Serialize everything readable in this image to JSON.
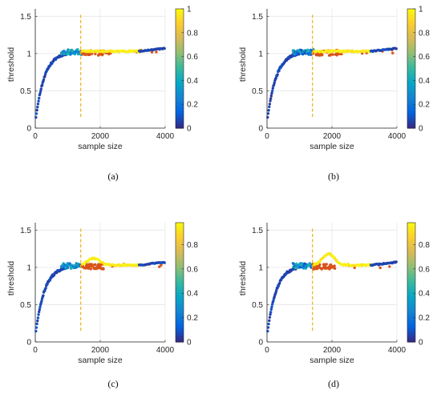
{
  "chart_data": [
    {
      "type": "scatter",
      "caption": "(a)",
      "xlabel": "sample size",
      "ylabel": "threshold",
      "xlim": [
        0,
        4000
      ],
      "ylim": [
        0,
        1.6
      ],
      "xticks": [
        "0",
        "2000",
        "4000"
      ],
      "yticks": [
        "0",
        "0.5",
        "1",
        "1.5"
      ],
      "colorbar": {
        "range": [
          0,
          1
        ],
        "ticks": [
          "0",
          "0.2",
          "0.4",
          "0.6",
          "0.8",
          "1"
        ],
        "colormap": "parula"
      },
      "grid": true,
      "vline": {
        "x": 1400,
        "y_range": [
          0.15,
          1.52
        ],
        "color": "#EDB120"
      },
      "hump": {
        "peak_x": 0,
        "height": 0
      }
    },
    {
      "type": "scatter",
      "caption": "(b)",
      "xlabel": "sample size",
      "ylabel": "threshold",
      "xlim": [
        0,
        4000
      ],
      "ylim": [
        0,
        1.6
      ],
      "xticks": [
        "0",
        "2000",
        "4000"
      ],
      "yticks": [
        "0",
        "0.5",
        "1",
        "1.5"
      ],
      "colorbar": {
        "range": [
          0,
          1
        ],
        "ticks": [
          "0",
          "0.2",
          "0.4",
          "0.6",
          "0.8",
          "1"
        ],
        "colormap": "parula"
      },
      "grid": true,
      "vline": {
        "x": 1400,
        "y_range": [
          0.15,
          1.52
        ],
        "color": "#EDB120"
      },
      "hump": {
        "peak_x": 0,
        "height": 0
      }
    },
    {
      "type": "scatter",
      "caption": "(c)",
      "xlabel": "sample size",
      "ylabel": "threshold",
      "xlim": [
        0,
        4000
      ],
      "ylim": [
        0,
        1.6
      ],
      "xticks": [
        "0",
        "2000",
        "4000"
      ],
      "yticks": [
        "0",
        "0.5",
        "1",
        "1.5"
      ],
      "colorbar": {
        "range": [
          0,
          0.98
        ],
        "ticks": [
          "0",
          "0.2",
          "0.4",
          "0.6",
          "0.8"
        ],
        "colormap": "parula"
      },
      "grid": true,
      "vline": {
        "x": 1400,
        "y_range": [
          0.15,
          1.52
        ],
        "color": "#EDB120"
      },
      "hump": {
        "peak_x": 1800,
        "height": 0.09
      }
    },
    {
      "type": "scatter",
      "caption": "(d)",
      "xlabel": "sample size",
      "ylabel": "threshold",
      "xlim": [
        0,
        4000
      ],
      "ylim": [
        0,
        1.6
      ],
      "xticks": [
        "0",
        "2000",
        "4000"
      ],
      "yticks": [
        "0",
        "0.5",
        "1",
        "1.5"
      ],
      "colorbar": {
        "range": [
          0,
          0.98
        ],
        "ticks": [
          "0",
          "0.2",
          "0.4",
          "0.6",
          "0.8"
        ],
        "colormap": "parula"
      },
      "grid": true,
      "vline": {
        "x": 1400,
        "y_range": [
          0.15,
          1.52
        ],
        "color": "#EDB120"
      },
      "hump": {
        "peak_x": 1900,
        "height": 0.15
      }
    }
  ]
}
